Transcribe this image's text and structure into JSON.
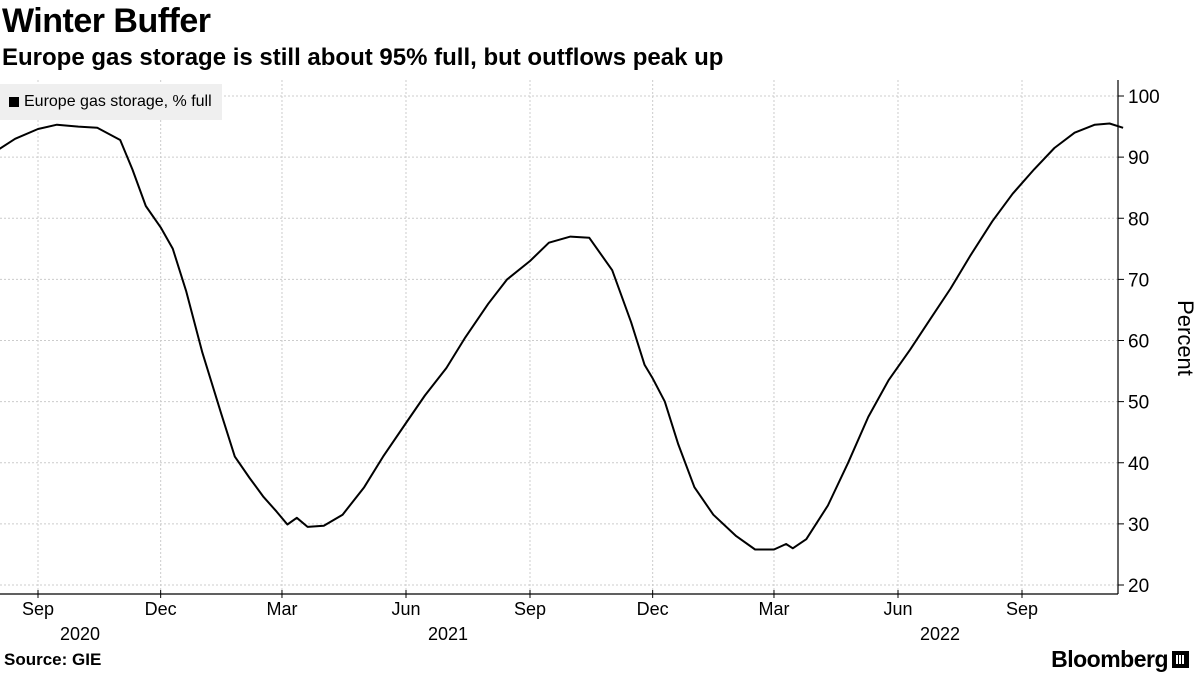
{
  "header": {
    "title": "Winter Buffer",
    "subtitle": "Europe gas storage is still about 95% full, but outflows peak up"
  },
  "footer": {
    "source": "Source: GIE",
    "brand": "Bloomberg",
    "brand_icon": "bloomberg-terminal-icon"
  },
  "chart_data": {
    "type": "line",
    "ylabel": "Percent",
    "ylim": [
      20,
      100
    ],
    "yticks": [
      20,
      30,
      40,
      50,
      60,
      70,
      80,
      90,
      100
    ],
    "xlim": [
      "2020-08-01",
      "2022-11-22"
    ],
    "grid": true,
    "legend_position": "top-left",
    "x_ticks": [
      {
        "date": "2020-09-01",
        "label": "Sep",
        "year": "2020"
      },
      {
        "date": "2020-12-01",
        "label": "Dec",
        "year": ""
      },
      {
        "date": "2021-03-01",
        "label": "Mar",
        "year": ""
      },
      {
        "date": "2021-06-01",
        "label": "Jun",
        "year": "2021"
      },
      {
        "date": "2021-09-01",
        "label": "Sep",
        "year": ""
      },
      {
        "date": "2021-12-01",
        "label": "Dec",
        "year": ""
      },
      {
        "date": "2022-03-01",
        "label": "Mar",
        "year": ""
      },
      {
        "date": "2022-06-01",
        "label": "Jun",
        "year": "2022"
      },
      {
        "date": "2022-09-01",
        "label": "Sep",
        "year": ""
      }
    ],
    "series": [
      {
        "name": "Europe gas storage, % full",
        "color": "#000000",
        "points": [
          [
            "2020-08-01",
            91.0
          ],
          [
            "2020-08-15",
            93.0
          ],
          [
            "2020-09-01",
            94.6
          ],
          [
            "2020-09-15",
            95.3
          ],
          [
            "2020-10-01",
            95.0
          ],
          [
            "2020-10-15",
            94.8
          ],
          [
            "2020-11-01",
            92.8
          ],
          [
            "2020-11-10",
            88.0
          ],
          [
            "2020-11-20",
            82.0
          ],
          [
            "2020-12-01",
            78.5
          ],
          [
            "2020-12-10",
            75.0
          ],
          [
            "2020-12-20",
            68.0
          ],
          [
            "2021-01-01",
            58.0
          ],
          [
            "2021-01-15",
            48.0
          ],
          [
            "2021-01-25",
            41.0
          ],
          [
            "2021-02-05",
            37.5
          ],
          [
            "2021-02-15",
            34.5
          ],
          [
            "2021-02-25",
            32.0
          ],
          [
            "2021-03-05",
            29.9
          ],
          [
            "2021-03-12",
            31.0
          ],
          [
            "2021-03-20",
            29.5
          ],
          [
            "2021-04-01",
            29.7
          ],
          [
            "2021-04-15",
            31.5
          ],
          [
            "2021-05-01",
            36.0
          ],
          [
            "2021-05-15",
            41.0
          ],
          [
            "2021-06-01",
            46.5
          ],
          [
            "2021-06-15",
            51.0
          ],
          [
            "2021-07-01",
            55.5
          ],
          [
            "2021-07-15",
            60.5
          ],
          [
            "2021-08-01",
            66.0
          ],
          [
            "2021-08-15",
            70.0
          ],
          [
            "2021-09-01",
            73.0
          ],
          [
            "2021-09-15",
            76.0
          ],
          [
            "2021-10-01",
            77.0
          ],
          [
            "2021-10-15",
            76.8
          ],
          [
            "2021-11-01",
            71.5
          ],
          [
            "2021-11-15",
            63.0
          ],
          [
            "2021-11-25",
            56.0
          ],
          [
            "2021-12-01",
            53.8
          ],
          [
            "2021-12-10",
            50.0
          ],
          [
            "2021-12-20",
            43.0
          ],
          [
            "2022-01-01",
            36.0
          ],
          [
            "2022-01-15",
            31.5
          ],
          [
            "2022-02-01",
            28.0
          ],
          [
            "2022-02-15",
            25.8
          ],
          [
            "2022-03-01",
            25.8
          ],
          [
            "2022-03-10",
            26.7
          ],
          [
            "2022-03-15",
            26.0
          ],
          [
            "2022-03-25",
            27.5
          ],
          [
            "2022-04-10",
            33.0
          ],
          [
            "2022-04-25",
            40.0
          ],
          [
            "2022-05-10",
            47.5
          ],
          [
            "2022-05-25",
            53.5
          ],
          [
            "2022-06-10",
            58.5
          ],
          [
            "2022-06-25",
            63.5
          ],
          [
            "2022-07-10",
            68.5
          ],
          [
            "2022-07-25",
            74.0
          ],
          [
            "2022-08-10",
            79.5
          ],
          [
            "2022-08-25",
            84.0
          ],
          [
            "2022-09-10",
            88.0
          ],
          [
            "2022-09-25",
            91.5
          ],
          [
            "2022-10-10",
            94.0
          ],
          [
            "2022-10-25",
            95.3
          ],
          [
            "2022-11-05",
            95.5
          ],
          [
            "2022-11-15",
            94.8
          ]
        ]
      }
    ]
  }
}
